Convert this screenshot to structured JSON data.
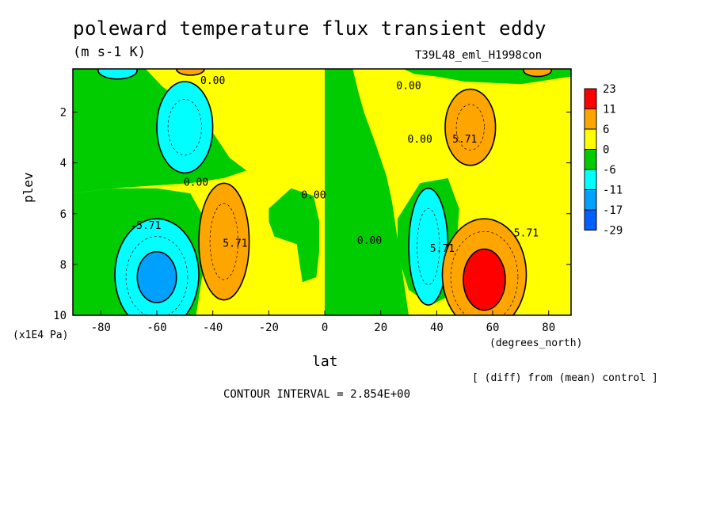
{
  "chart_data": {
    "type": "heatmap",
    "title": "poleward temperature flux transient eddy",
    "units": "(m s-1 K)",
    "run_label": "T39L48_eml_H1998con",
    "xlabel": "lat",
    "x_unit": "(degrees_north)",
    "ylabel": "plev",
    "y_unit": "(x1E4 Pa)",
    "xlim": [
      -90,
      88
    ],
    "ylim": [
      10,
      0.3
    ],
    "x_ticks": [
      -80,
      -60,
      -40,
      -20,
      0,
      20,
      40,
      60,
      80
    ],
    "x_tick_labels": [
      "-80",
      "-60",
      "-40",
      "-20",
      "0",
      "20",
      "40",
      "60",
      "80"
    ],
    "y_ticks": [
      2,
      4,
      6,
      8,
      10
    ],
    "y_tick_labels": [
      "2",
      "4",
      "6",
      "8",
      "10"
    ],
    "legend_levels": [
      "23",
      "11",
      "6",
      "0",
      "-6",
      "-11",
      "-17",
      "-29"
    ],
    "legend_colors": [
      "#ff0000",
      "#ffa500",
      "#ffff00",
      "#00cc00",
      "#00ffff",
      "#00a0ff",
      "#0060ff"
    ],
    "contour_labels": [
      "0.00",
      "0.00",
      "0.00",
      "0.00",
      "0.00",
      "0.00",
      "-5.71",
      "5.71",
      "5.71",
      "5.71",
      "5.71"
    ],
    "features": [
      {
        "lat": 57,
        "plev": 8.6,
        "value": 23
      },
      {
        "lat": -60,
        "plev": 8.5,
        "value": -17
      },
      {
        "lat": -36,
        "plev": 7.0,
        "value": 11
      },
      {
        "lat": 38,
        "plev": 7.3,
        "value": -11
      },
      {
        "lat": 52,
        "plev": 2.5,
        "value": 11
      },
      {
        "lat": -50,
        "plev": 2.5,
        "value": -11
      }
    ],
    "diff_note": "[ (diff) from (mean) control ]",
    "contour_interval": "CONTOUR INTERVAL = 2.854E+00"
  }
}
